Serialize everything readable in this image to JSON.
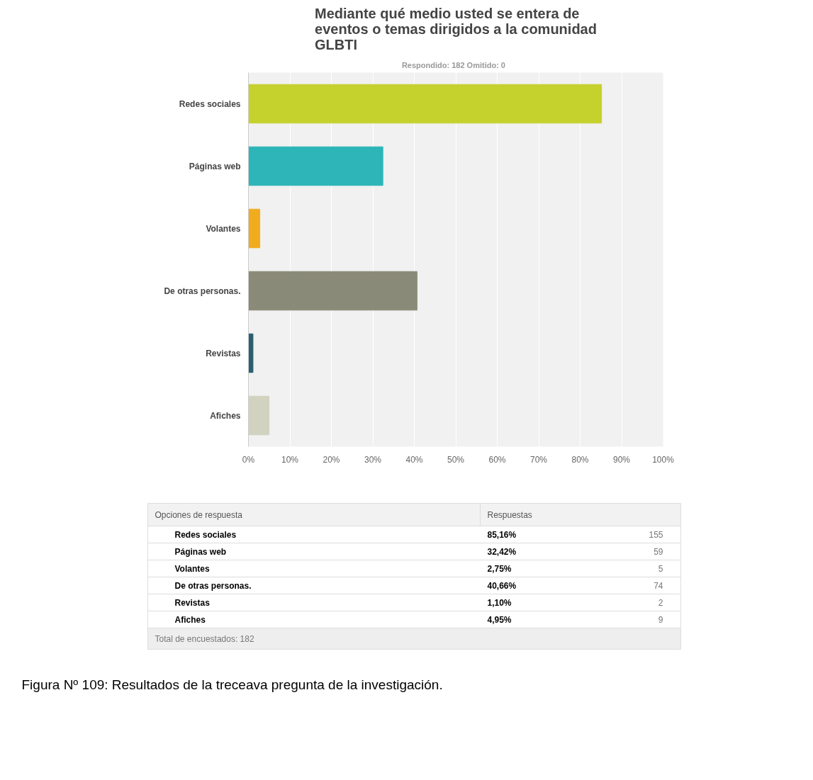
{
  "chart_data": [
    {
      "type": "bar",
      "orientation": "horizontal",
      "title": "Mediante qué medio usted se entera de eventos o temas dirigidos a la comunidad GLBTI",
      "subtitle": "Respondido: 182   Omitido: 0",
      "categories": [
        "Redes sociales",
        "Páginas web",
        "Volantes",
        "De otras personas.",
        "Revistas",
        "Afiches"
      ],
      "values": [
        85.16,
        32.42,
        2.75,
        40.66,
        1.1,
        4.95
      ],
      "colors": [
        "#c5d12d",
        "#2db5b8",
        "#f0ab1f",
        "#8a8a78",
        "#2a5f6e",
        "#d2d2c0"
      ],
      "xlim": [
        0,
        100
      ],
      "xticks": [
        {
          "value": 0,
          "label": "0%"
        },
        {
          "value": 10,
          "label": "10%"
        },
        {
          "value": 20,
          "label": "20%"
        },
        {
          "value": 30,
          "label": "30%"
        },
        {
          "value": 40,
          "label": "40%"
        },
        {
          "value": 50,
          "label": "50%"
        },
        {
          "value": 60,
          "label": "60%"
        },
        {
          "value": 70,
          "label": "70%"
        },
        {
          "value": 80,
          "label": "80%"
        },
        {
          "value": 90,
          "label": "90%"
        },
        {
          "value": 100,
          "label": "100%"
        }
      ],
      "grid": "x",
      "annotations": [
        "Figura Nº 109: Resultados de la treceava pregunta de la investigación."
      ]
    },
    {
      "type": "other",
      "annotations": [
        "Opciones de respuesta",
        "Respuestas",
        "85,16%",
        "32,42%",
        "2,75%",
        "40,66%",
        "1,10%",
        "4,95%",
        "155",
        "59",
        "5",
        "74",
        "2",
        "9",
        "Total de encuestados: 182"
      ]
    }
  ]
}
